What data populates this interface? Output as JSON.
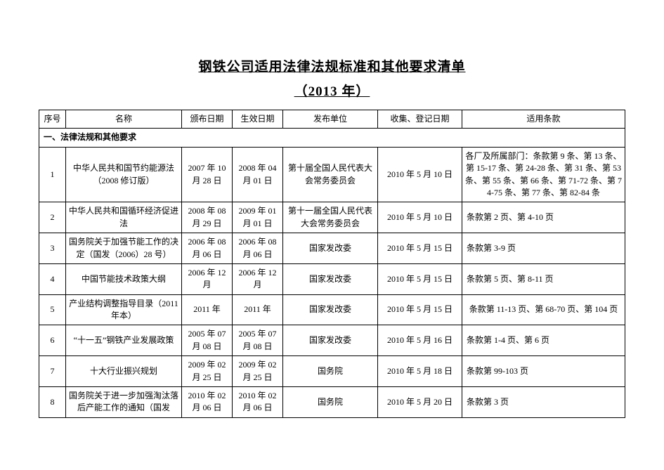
{
  "title": "钢铁公司适用法律法规标准和其他要求清单",
  "subtitle": "（2013 年）",
  "headers": {
    "idx": "序号",
    "name": "名称",
    "issue_date": "颁布日期",
    "eff_date": "生效日期",
    "agency": "发布单位",
    "reg_date": "收集、登记日期",
    "apply": "适用条款"
  },
  "section_title": "一、法律法规和其他要求",
  "rows": [
    {
      "idx": "1",
      "name": "中华人民共和国节约能源法（2008 修订版）",
      "issue_date": "2007 年 10 月 28 日",
      "eff_date": "2008 年 04 月 01 日",
      "agency": "第十届全国人民代表大会常务委员会",
      "reg_date": "2010 年 5 月 10 日",
      "apply": "各厂及所属部门：条款第 9 条、第 13 条、第 15-17 条、第 24-28 条、第 31 条、第 53 条、第 55 条、第 66 条、第 71-72 条、第 74-75 条、第 77 条、第 82-84 条",
      "apply_align": "center"
    },
    {
      "idx": "2",
      "name": "中华人民共和国循环经济促进法",
      "issue_date": "2008 年 08 月 29 日",
      "eff_date": "2009 年 01 月 01 日",
      "agency": "第十一届全国人民代表大会常务委员会",
      "reg_date": "2010 年 5 月 10 日",
      "apply": "条款第 2 页、第 4-10 页",
      "apply_align": "left"
    },
    {
      "idx": "3",
      "name": "国务院关于加强节能工作的决定（国发（2006）28 号）",
      "issue_date": "2006 年 08 月 06 日",
      "eff_date": "2006 年 08 月 06 日",
      "agency": "国家发改委",
      "reg_date": "2010 年 5 月 15 日",
      "apply": "条款第 3-9 页",
      "apply_align": "left"
    },
    {
      "idx": "4",
      "name": "中国节能技术政策大纲",
      "issue_date": "2006 年 12 月",
      "eff_date": "2006 年 12 月",
      "agency": "国家发改委",
      "reg_date": "2010 年 5 月 15 日",
      "apply": "条款第 5 页、第 8-11 页",
      "apply_align": "left"
    },
    {
      "idx": "5",
      "name": "产业结构调整指导目录（2011 年本）",
      "issue_date": "2011 年",
      "eff_date": "2011 年",
      "agency": "国家发改委",
      "reg_date": "2010 年 5 月 15 日",
      "apply": "条款第 11-13 页、第 68-70 页、第 104 页",
      "apply_align": "center"
    },
    {
      "idx": "6",
      "name": "“十一五”钢铁产业发展政策",
      "issue_date": "2005 年 07 月 08 日",
      "eff_date": "2005 年 07 月 08 日",
      "agency": "国家发改委",
      "reg_date": "2010 年 5 月 16 日",
      "apply": "条款第 1-4 页、第 6 页",
      "apply_align": "left"
    },
    {
      "idx": "7",
      "name": "十大行业振兴规划",
      "issue_date": "2009 年 02 月 25 日",
      "eff_date": "2009 年 02 月 25 日",
      "agency": "国务院",
      "reg_date": "2010 年 5 月 18 日",
      "apply": "条款第 99-103 页",
      "apply_align": "left"
    },
    {
      "idx": "8",
      "name": "国务院关于进一步加强淘汰落后产能工作的通知（国发",
      "issue_date": "2010 年 02 月 06 日",
      "eff_date": "2010 年 02 月 06 日",
      "agency": "国务院",
      "reg_date": "2010 年 5 月 20 日",
      "apply": "条款第 3 页",
      "apply_align": "left"
    }
  ]
}
